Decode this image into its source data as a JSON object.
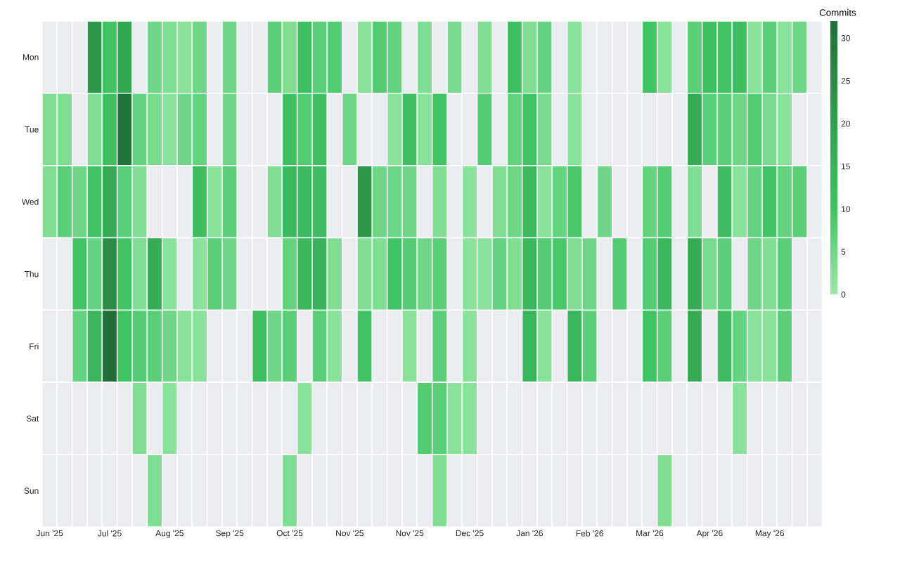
{
  "chart_data": {
    "type": "heatmap",
    "categories": [
      "Jun '25",
      null,
      null,
      null,
      "Jul '25",
      null,
      null,
      null,
      "Aug '25",
      null,
      null,
      null,
      "Sep '25",
      null,
      null,
      null,
      "Oct '25",
      null,
      null,
      null,
      "Nov '25",
      null,
      null,
      null,
      "Nov '25",
      null,
      null,
      null,
      "Dec '25",
      null,
      null,
      null,
      "Jan '26",
      null,
      null,
      null,
      "Feb '26",
      null,
      null,
      null,
      "Mar '26",
      null,
      null,
      null,
      "Apr '26",
      null,
      null,
      null,
      "May '26",
      null,
      null,
      null
    ],
    "y_categories": [
      "Mon",
      "Tue",
      "Wed",
      "Thu",
      "Fri",
      "Sat",
      "Sun"
    ],
    "cells": [
      [
        null,
        null,
        null,
        22,
        10,
        18,
        null,
        5,
        3,
        2,
        5,
        null,
        5,
        null,
        null,
        7,
        3,
        11,
        7,
        8,
        null,
        2,
        8,
        6,
        null,
        3,
        null,
        4,
        null,
        3,
        null,
        11,
        3,
        6,
        null,
        2,
        null,
        null,
        null,
        null,
        10,
        2,
        null,
        7,
        11,
        10,
        12,
        2,
        7,
        2,
        5,
        null
      ],
      [
        3,
        3,
        null,
        3,
        11,
        31,
        6,
        4,
        2,
        5,
        6,
        null,
        5,
        null,
        null,
        null,
        11,
        8,
        11,
        null,
        5,
        null,
        null,
        2,
        11,
        2,
        10,
        null,
        null,
        8,
        null,
        6,
        10,
        4,
        null,
        2,
        null,
        null,
        null,
        null,
        null,
        null,
        null,
        17,
        7,
        7,
        5,
        8,
        4,
        2,
        null,
        null
      ],
      [
        3,
        7,
        5,
        10,
        17,
        7,
        3,
        null,
        null,
        null,
        12,
        2,
        7,
        null,
        null,
        3,
        13,
        13,
        12,
        null,
        null,
        22,
        5,
        5,
        5,
        null,
        3,
        null,
        2,
        null,
        3,
        5,
        13,
        2,
        6,
        9,
        null,
        5,
        null,
        null,
        6,
        8,
        null,
        3,
        null,
        12,
        2,
        6,
        10,
        6,
        7,
        null
      ],
      [
        null,
        null,
        10,
        6,
        25,
        10,
        3,
        17,
        2,
        null,
        2,
        7,
        5,
        null,
        null,
        null,
        6,
        14,
        15,
        3,
        null,
        3,
        3,
        10,
        8,
        5,
        7,
        null,
        2,
        2,
        6,
        3,
        14,
        8,
        9,
        3,
        5,
        null,
        8,
        null,
        8,
        14,
        null,
        17,
        4,
        7,
        null,
        5,
        3,
        7,
        null,
        null
      ],
      [
        null,
        null,
        6,
        14,
        32,
        10,
        8,
        7,
        5,
        2,
        2,
        null,
        null,
        null,
        11,
        5,
        7,
        null,
        7,
        2,
        null,
        10,
        null,
        null,
        2,
        null,
        7,
        null,
        2,
        null,
        null,
        null,
        14,
        2,
        null,
        14,
        7,
        null,
        null,
        null,
        10,
        7,
        null,
        17,
        null,
        12,
        6,
        2,
        2,
        7,
        null,
        null
      ],
      [
        null,
        null,
        null,
        null,
        null,
        null,
        3,
        null,
        2,
        null,
        null,
        null,
        null,
        null,
        null,
        null,
        null,
        2,
        null,
        null,
        null,
        null,
        null,
        null,
        null,
        8,
        7,
        2,
        2,
        null,
        null,
        null,
        null,
        null,
        null,
        null,
        null,
        null,
        null,
        null,
        null,
        null,
        null,
        null,
        null,
        null,
        2,
        null,
        null,
        null,
        null,
        null
      ],
      [
        null,
        null,
        null,
        null,
        null,
        null,
        null,
        3,
        null,
        null,
        null,
        null,
        null,
        null,
        null,
        null,
        3,
        null,
        null,
        null,
        null,
        null,
        null,
        null,
        null,
        null,
        3,
        null,
        null,
        null,
        null,
        null,
        null,
        null,
        null,
        null,
        null,
        null,
        null,
        null,
        null,
        3,
        null,
        null,
        null,
        null,
        null,
        null,
        null,
        null,
        null,
        null
      ]
    ],
    "clabel": "Commits",
    "clim": [
      0,
      32
    ],
    "cticks": [
      0,
      5,
      10,
      15,
      20,
      25,
      30
    ]
  }
}
